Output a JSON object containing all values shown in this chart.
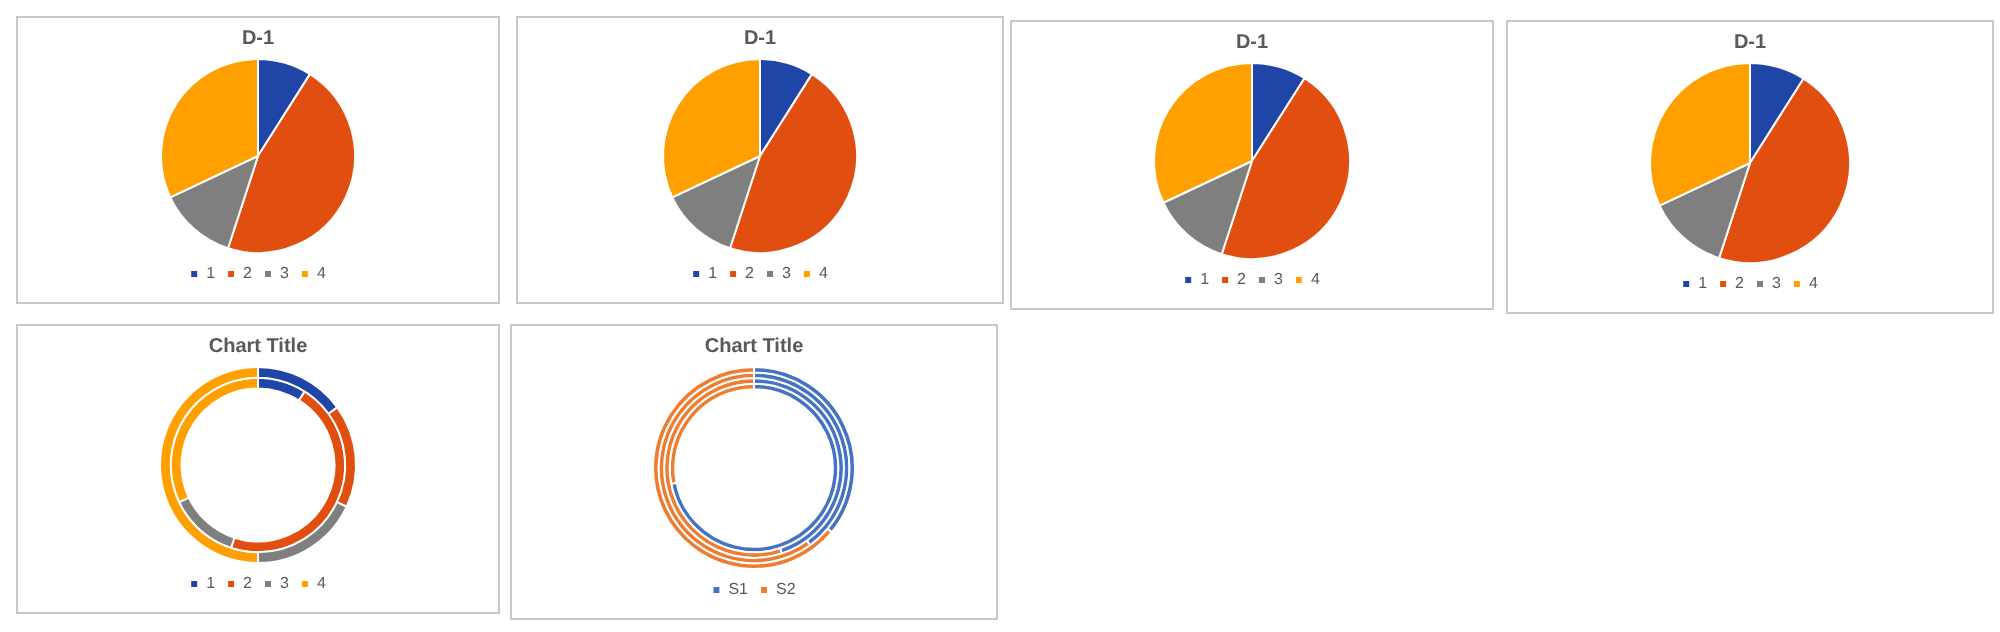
{
  "chart_data": [
    {
      "type": "pie",
      "title": "D-1",
      "categories": [
        "1",
        "2",
        "3",
        "4"
      ],
      "values": [
        9,
        46,
        13,
        32
      ],
      "colors": [
        "#1f45a6",
        "#e04e10",
        "#7f7f7f",
        "#ffa000"
      ],
      "legend": "bottom"
    },
    {
      "type": "pie",
      "title": "D-1",
      "categories": [
        "1",
        "2",
        "3",
        "4"
      ],
      "values": [
        9,
        46,
        13,
        32
      ],
      "colors": [
        "#1f45a6",
        "#e04e10",
        "#7f7f7f",
        "#ffa000"
      ],
      "legend": "bottom"
    },
    {
      "type": "pie",
      "title": "D-1",
      "categories": [
        "1",
        "2",
        "3",
        "4"
      ],
      "values": [
        9,
        46,
        13,
        32
      ],
      "colors": [
        "#1f45a6",
        "#e04e10",
        "#7f7f7f",
        "#ffa000"
      ],
      "legend": "bottom"
    },
    {
      "type": "pie",
      "title": "D-1",
      "categories": [
        "1",
        "2",
        "3",
        "4"
      ],
      "values": [
        9,
        46,
        13,
        32
      ],
      "colors": [
        "#1f45a6",
        "#e04e10",
        "#7f7f7f",
        "#ffa000"
      ],
      "legend": "bottom"
    },
    {
      "type": "donut",
      "title": "Chart Title",
      "categories": [
        "1",
        "2",
        "3",
        "4"
      ],
      "colors": [
        "#1f45a6",
        "#e04e10",
        "#7f7f7f",
        "#ffa000"
      ],
      "legend": "bottom",
      "series": [
        {
          "values": [
            9,
            46,
            13,
            32
          ]
        },
        {
          "values": [
            15,
            17,
            18,
            50
          ]
        }
      ]
    },
    {
      "type": "donut",
      "title": "Chart Title",
      "categories": [
        "S1",
        "S2"
      ],
      "colors": [
        "#4472c4",
        "#ed7d31"
      ],
      "legend": "bottom",
      "series": [
        {
          "values": [
            72,
            28
          ]
        },
        {
          "values": [
            45,
            55
          ]
        },
        {
          "values": [
            40,
            60
          ]
        },
        {
          "values": [
            36,
            64
          ]
        }
      ]
    }
  ]
}
